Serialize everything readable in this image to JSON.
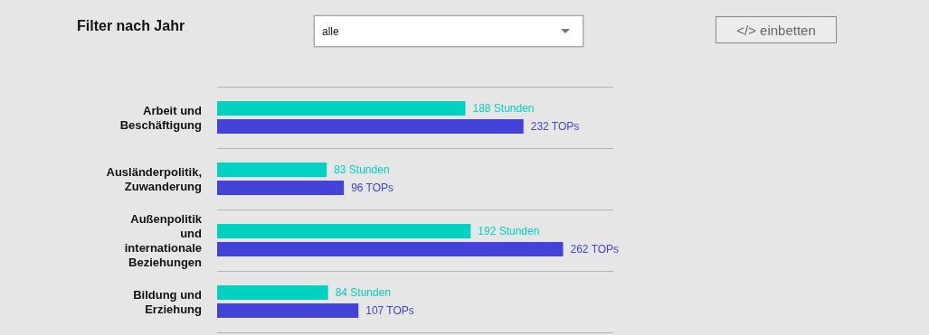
{
  "chart_data": {
    "type": "bar",
    "orientation": "horizontal",
    "title": "Filter nach Jahr",
    "annotations": [
      "alle",
      "</> einbetten"
    ],
    "categories": [
      "Arbeit und\nBeschäftigung",
      "Ausländerpolitik,\nZuwanderung",
      "Außenpolitik\nund\ninternationale\nBeziehungen",
      "Bildung und\nErziehung"
    ],
    "series": [
      {
        "color": "#00d1c1",
        "values": [
          188,
          83,
          192,
          84
        ],
        "value_labels": [
          "188 Stunden",
          "83 Stunden",
          "192 Stunden",
          "84 Stunden"
        ]
      },
      {
        "color": "#4343d9",
        "values": [
          232,
          96,
          262,
          107
        ],
        "value_labels": [
          "232 TOPs",
          "96 TOPs",
          "262 TOPs",
          "107 TOPs"
        ]
      }
    ],
    "grid": "y"
  }
}
